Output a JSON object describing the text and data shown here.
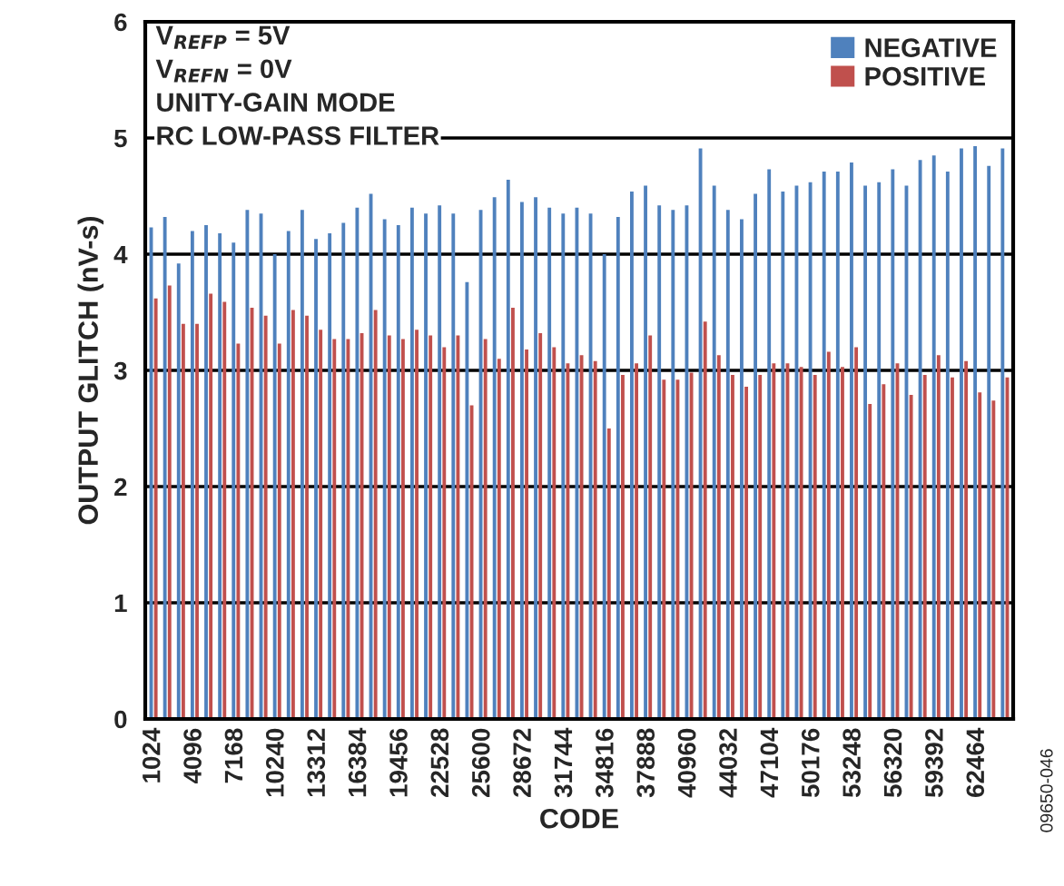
{
  "chart_data": {
    "type": "bar",
    "xlabel": "CODE",
    "ylabel": "OUTPUT GLITCH (nV-s)",
    "categories": [
      "1024",
      null,
      null,
      "4096",
      null,
      null,
      "7168",
      null,
      null,
      "10240",
      null,
      null,
      "13312",
      null,
      null,
      "16384",
      null,
      null,
      "19456",
      null,
      null,
      "22528",
      null,
      null,
      "25600",
      null,
      null,
      "28672",
      null,
      null,
      "31744",
      null,
      null,
      "34816",
      null,
      null,
      "37888",
      null,
      null,
      "40960",
      null,
      null,
      "44032",
      null,
      null,
      "47104",
      null,
      null,
      "50176",
      null,
      null,
      "53248",
      null,
      null,
      "56320",
      null,
      null,
      "59392",
      null,
      null,
      "62464",
      null,
      null
    ],
    "series": [
      {
        "name": "NEGATIVE",
        "color": "#4f81bd",
        "values": [
          4.23,
          4.32,
          3.92,
          4.2,
          4.25,
          4.18,
          4.1,
          4.38,
          4.35,
          4.0,
          4.2,
          4.38,
          4.13,
          4.18,
          4.27,
          4.4,
          4.52,
          4.3,
          4.25,
          4.4,
          4.35,
          4.42,
          4.35,
          3.76,
          4.38,
          4.49,
          4.64,
          4.45,
          4.49,
          4.4,
          4.35,
          4.4,
          4.35,
          4.0,
          4.32,
          4.54,
          4.59,
          4.42,
          4.38,
          4.42,
          4.91,
          4.59,
          4.38,
          4.3,
          4.52,
          4.73,
          4.54,
          4.59,
          4.62,
          4.71,
          4.71,
          4.79,
          4.59,
          4.62,
          4.73,
          4.59,
          4.81,
          4.85,
          4.71,
          4.91,
          4.93,
          4.76,
          4.91
        ]
      },
      {
        "name": "POSITIVE",
        "color": "#c0504d",
        "values": [
          3.62,
          3.73,
          3.4,
          3.4,
          3.66,
          3.59,
          3.23,
          3.54,
          3.47,
          3.23,
          3.52,
          3.47,
          3.35,
          3.27,
          3.27,
          3.32,
          3.52,
          3.3,
          3.27,
          3.35,
          3.3,
          3.2,
          3.3,
          2.7,
          3.27,
          3.1,
          3.54,
          3.18,
          3.32,
          3.2,
          3.06,
          3.13,
          3.08,
          2.5,
          2.96,
          3.06,
          3.3,
          2.92,
          2.92,
          2.98,
          3.42,
          3.13,
          2.96,
          2.86,
          2.96,
          3.06,
          3.06,
          3.03,
          2.96,
          3.16,
          3.03,
          3.2,
          2.71,
          2.88,
          3.06,
          2.79,
          2.96,
          3.13,
          2.94,
          3.08,
          2.81,
          2.74,
          2.94
        ]
      }
    ],
    "ylim": [
      0,
      6
    ],
    "yticks": [
      0,
      1,
      2,
      3,
      4,
      5,
      6
    ],
    "grid": "y",
    "legend": "top right",
    "annotations": [
      "V$_{REFP}$ = 5V",
      "V$_{REFN}$ = 0V",
      "UNITY-GAIN MODE",
      "RC LOW-PASS FILTER",
      "09650-046"
    ]
  }
}
